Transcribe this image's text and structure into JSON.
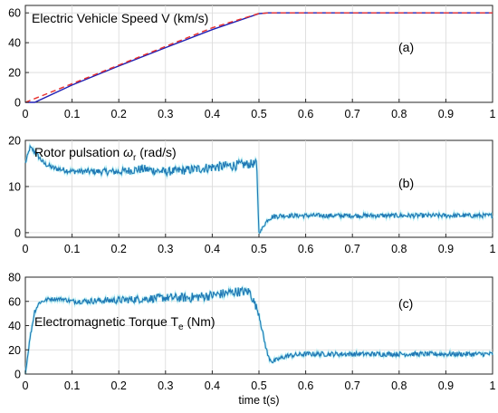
{
  "chart_data": [
    {
      "type": "line",
      "title": "Electric Vehicle Speed V (km/s)",
      "tag": "(a)",
      "xlim": [
        0,
        1
      ],
      "ylim": [
        0,
        65
      ],
      "xticks": [
        "0",
        "0.1",
        "0.2",
        "0.3",
        "0.4",
        "0.5",
        "0.6",
        "0.7",
        "0.8",
        "0.9",
        "1"
      ],
      "yticks": [
        "0",
        "20",
        "40",
        "60"
      ],
      "ytick_values": [
        0,
        20,
        40,
        60
      ],
      "grid": true,
      "series": [
        {
          "color": "#1f1fb4",
          "style": "solid",
          "x": [
            0,
            0.02,
            0.1,
            0.2,
            0.3,
            0.4,
            0.5,
            0.52,
            0.6,
            0.8,
            1.0
          ],
          "y": [
            0,
            0,
            11.6,
            24.4,
            36.7,
            48.8,
            59.5,
            60,
            60,
            60,
            60
          ]
        },
        {
          "color": "#e8312f",
          "style": "dashed",
          "x": [
            0,
            0.1,
            0.2,
            0.3,
            0.4,
            0.5,
            0.52,
            0.6,
            0.8,
            1.0
          ],
          "y": [
            0,
            12.5,
            25,
            37.5,
            50,
            59.6,
            60,
            60,
            60,
            60
          ]
        }
      ]
    },
    {
      "type": "line",
      "title": "Rotor pulsation ωr (rad/s)",
      "title_main": "Rotor pulsation ",
      "title_symbol": "ω",
      "title_sub": "r",
      "title_unit": " (rad/s)",
      "tag": "(b)",
      "xlim": [
        0,
        1
      ],
      "ylim": [
        -1,
        20
      ],
      "xticks": [
        "0",
        "0.1",
        "0.2",
        "0.3",
        "0.4",
        "0.5",
        "0.6",
        "0.7",
        "0.8",
        "0.9",
        "1"
      ],
      "yticks": [
        "0",
        "10",
        "20"
      ],
      "ytick_values": [
        0,
        10,
        20
      ],
      "grid": true,
      "series": [
        {
          "color": "#1f77b4",
          "style": "noisy",
          "x": [
            0,
            0.01,
            0.02,
            0.04,
            0.06,
            0.1,
            0.2,
            0.25,
            0.3,
            0.35,
            0.4,
            0.45,
            0.495,
            0.5,
            0.505,
            0.51,
            0.52,
            0.53,
            0.55,
            0.6,
            0.8,
            1.0
          ],
          "y": [
            15,
            18.5,
            17.5,
            15,
            14,
            13.3,
            13.2,
            13.8,
            13.2,
            13.6,
            14.2,
            14.6,
            15,
            0,
            0.5,
            1.5,
            3,
            3.5,
            3.7,
            3.7,
            3.7,
            3.7
          ],
          "noise": [
            0.4,
            0.4,
            0.6,
            0.5,
            0.6,
            0.6,
            0.8,
            1.0,
            0.9,
            1.0,
            1.1,
            1.1,
            0.9,
            0.2,
            0.3,
            0.4,
            0.5,
            0.6,
            0.5,
            0.5,
            0.5,
            0.5
          ]
        }
      ]
    },
    {
      "type": "line",
      "title": "Electromagnetic Torque Te (Nm)",
      "title_main": "Electromagnetic Torque T",
      "title_sub": "e",
      "title_unit": " (Nm)",
      "tag": "(c)",
      "xlim": [
        0,
        1
      ],
      "ylim": [
        0,
        80
      ],
      "xticks": [
        "0",
        "0.1",
        "0.2",
        "0.3",
        "0.4",
        "0.5",
        "0.6",
        "0.7",
        "0.8",
        "0.9",
        "1"
      ],
      "yticks": [
        "0",
        "20",
        "40",
        "60",
        "80"
      ],
      "ytick_values": [
        0,
        20,
        40,
        60,
        80
      ],
      "xlabel": "time t(s)",
      "grid": true,
      "series": [
        {
          "color": "#1f77b4",
          "style": "noisy",
          "x": [
            0,
            0.01,
            0.02,
            0.03,
            0.05,
            0.08,
            0.1,
            0.2,
            0.3,
            0.35,
            0.4,
            0.45,
            0.48,
            0.5,
            0.51,
            0.52,
            0.53,
            0.54,
            0.56,
            0.6,
            0.8,
            1.0
          ],
          "y": [
            0,
            30,
            52,
            59,
            62,
            62,
            60,
            61,
            63,
            63,
            65,
            68,
            68,
            50,
            30,
            14,
            10,
            12,
            15,
            16.5,
            16.5,
            16.5
          ],
          "noise": [
            0.5,
            1.5,
            2,
            1.5,
            1.5,
            1.5,
            2,
            3,
            3.5,
            4,
            4,
            4,
            4,
            3,
            2,
            2,
            2,
            2,
            2,
            2,
            2,
            2
          ]
        }
      ]
    }
  ]
}
